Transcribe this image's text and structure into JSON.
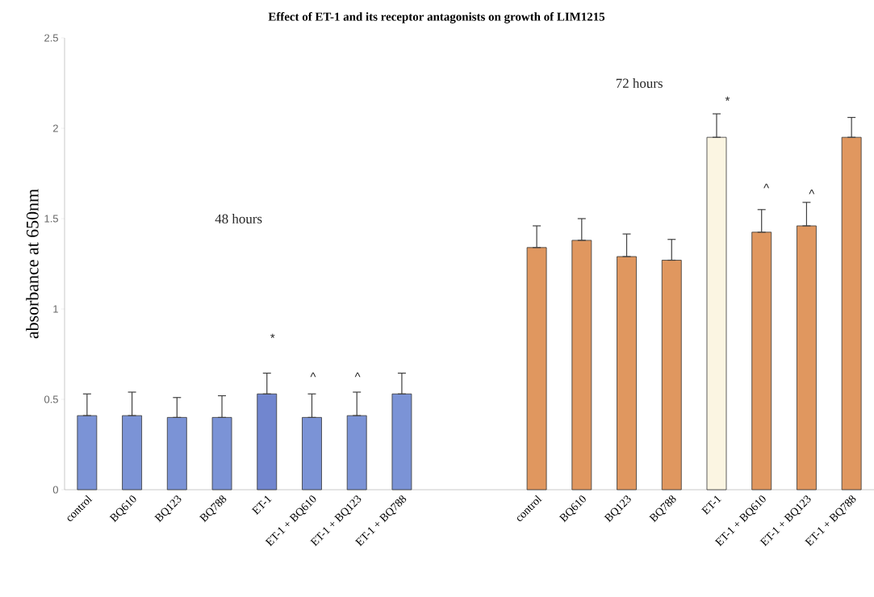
{
  "chart_data": {
    "type": "bar",
    "title": "Effect of ET-1 and its receptor antagonists on growth of LIM1215",
    "ylabel": "absorbance at 650nm",
    "categories": [
      "control",
      "BQ610",
      "BQ123",
      "BQ788",
      "ET-1",
      "ET-1 + BQ610",
      "ET-1 + BQ123",
      "ET-1 + BQ788",
      null,
      null,
      "control",
      "BQ610",
      "BQ123",
      "BQ788",
      "ET-1",
      "ET-1 + BQ610",
      "ET-1 + BQ123",
      "ET-1 + BQ788"
    ],
    "values": [
      0.41,
      0.41,
      0.4,
      0.4,
      0.53,
      0.4,
      0.41,
      0.53,
      null,
      null,
      1.34,
      1.38,
      1.29,
      1.27,
      1.95,
      1.425,
      1.46,
      1.95
    ],
    "errors": [
      [
        0.41,
        0.53
      ],
      [
        0.41,
        0.54
      ],
      [
        0.4,
        0.51
      ],
      [
        0.4,
        0.52
      ],
      [
        0.53,
        0.645
      ],
      [
        0.4,
        0.53
      ],
      [
        0.41,
        0.54
      ],
      [
        0.53,
        0.645
      ],
      null,
      null,
      [
        1.34,
        1.46
      ],
      [
        1.38,
        1.5
      ],
      [
        1.29,
        1.415
      ],
      [
        1.27,
        1.385
      ],
      [
        1.95,
        2.08
      ],
      [
        1.425,
        1.55
      ],
      [
        1.46,
        1.59
      ],
      [
        1.95,
        2.06
      ]
    ],
    "colors": [
      "#7b93d6",
      "#7b93d6",
      "#7b93d6",
      "#7b93d6",
      "#7186cf",
      "#7b93d6",
      "#7b93d6",
      "#7b93d6",
      "#ffffff",
      "#ffffff",
      "#e0975f",
      "#e0975f",
      "#e0975f",
      "#e0975f",
      "#fbf5e2",
      "#e0975f",
      "#e0975f",
      "#e0975f"
    ],
    "ylim": [
      0,
      2.5
    ],
    "yticks": [
      0,
      0.5,
      1,
      1.5,
      2,
      2.5
    ],
    "grid": false,
    "annotations": [
      "48 hours",
      "72 hours",
      "*",
      "^",
      "^",
      "*",
      "^",
      "^"
    ]
  }
}
